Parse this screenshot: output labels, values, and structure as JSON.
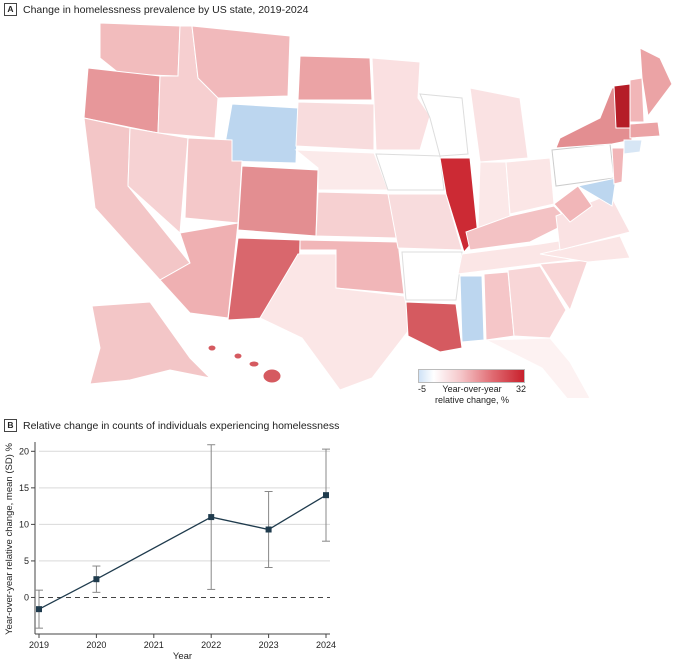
{
  "panel_a": {
    "badge": "A",
    "title": "Change in homelessness prevalence by US state, 2019-2024",
    "legend": {
      "min_label": "-5",
      "max_label": "32",
      "title_line1": "Year-over-year",
      "title_line2": "relative change, %"
    }
  },
  "panel_b": {
    "badge": "B",
    "title": "Relative change in counts of individuals experiencing homelessness"
  },
  "chart_data": [
    {
      "type": "choropleth",
      "title": "Change in homelessness prevalence by US state, 2019-2024",
      "scale": {
        "min": -5,
        "max": 32,
        "label": "Year-over-year relative change, %"
      }
    },
    {
      "type": "line",
      "title": "Relative change in counts of individuals experiencing homelessness",
      "xlabel": "Year",
      "ylabel": "Year-over-year relative change, mean (SD) %",
      "x_ticks": [
        "2019",
        "2020",
        "2021",
        "2022",
        "2023",
        "2024"
      ],
      "y_ticks": [
        "0",
        "5",
        "10",
        "15",
        "20"
      ],
      "ylim": [
        -5,
        21
      ],
      "x": [
        2019,
        2020,
        2022,
        2023,
        2024
      ],
      "y": [
        -1.6,
        2.5,
        11.0,
        9.3,
        14.0
      ],
      "sd": [
        2.6,
        1.8,
        9.9,
        5.2,
        6.3
      ],
      "reference_line": 0,
      "grid": true
    }
  ],
  "colors": {
    "marker": "#1f3b4d",
    "grid": "#d9d9d9",
    "blue": "#bcd6ef",
    "red": "#c8202c"
  }
}
